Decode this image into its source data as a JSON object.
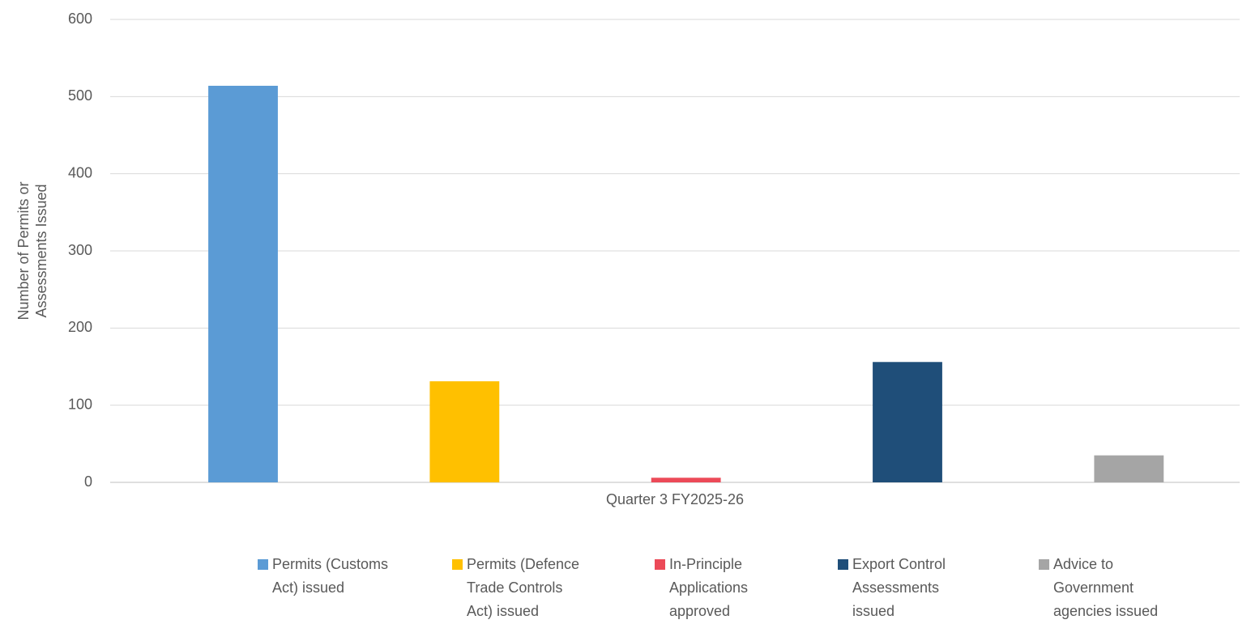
{
  "chart_data": {
    "type": "bar",
    "y_label": "Number of Permits or Assessments Issued",
    "categories": [
      "Quarter 3 FY2025-26"
    ],
    "series": [
      {
        "name": "Permits (Customs Act) issued",
        "color": "#5b9bd5",
        "values": [
          514
        ]
      },
      {
        "name": "Permits (Defence Trade Controls Act) issued",
        "color": "#ffc000",
        "values": [
          131
        ]
      },
      {
        "name": "In-Principle Applications approved",
        "color": "#ec4a58",
        "values": [
          6
        ]
      },
      {
        "name": "Export Control Assessments issued",
        "color": "#1f4e79",
        "values": [
          156
        ]
      },
      {
        "name": "Advice to Government agencies issued",
        "color": "#a5a5a5",
        "values": [
          35
        ]
      }
    ],
    "ylim": [
      0,
      600
    ],
    "yticks": [
      0,
      100,
      200,
      300,
      400,
      500,
      600
    ],
    "grid": true,
    "legend": "bottom"
  }
}
